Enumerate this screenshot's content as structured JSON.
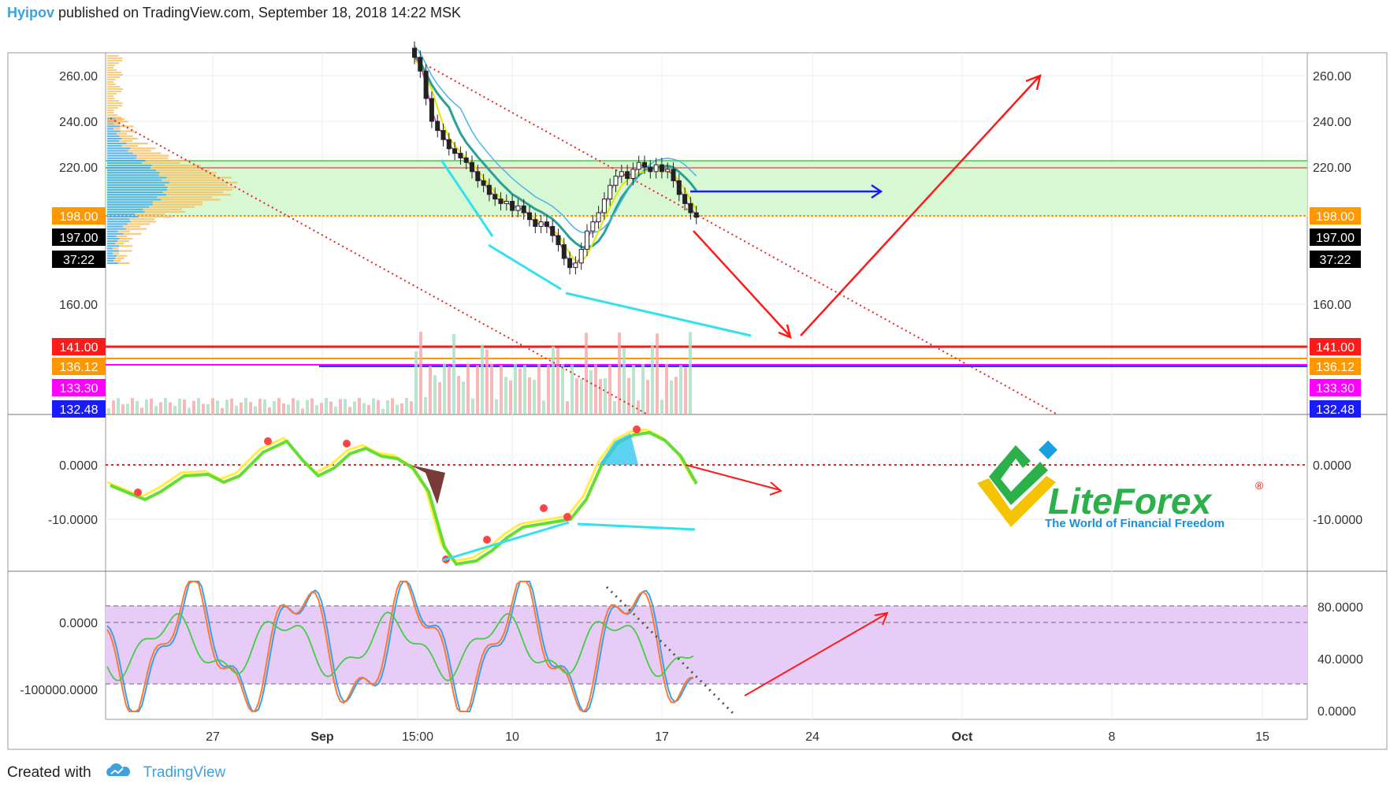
{
  "header": {
    "author": "Hyipov",
    "rest": "published on TradingView.com, September 18, 2018 14:22 MSK"
  },
  "footer": {
    "created": "Created with",
    "brand": "TradingView"
  },
  "logo": {
    "name": "LiteForex",
    "tagline": "The World of Financial Freedom",
    "mark": "®"
  },
  "colors": {
    "support_zone": "#c8f5c4",
    "oscillator_zone": "#e6c8f8",
    "red": "#ff1a1a",
    "orange": "#ff9800",
    "magenta": "#ff00ff",
    "blue": "#1a1aff",
    "cyan": "#33e0f0"
  },
  "chart_data": [
    {
      "type": "candlestick",
      "panel": "price",
      "y_ticks": [
        "260.00",
        "240.00",
        "220.00",
        "160.00"
      ],
      "y_values": [
        260,
        240,
        220,
        160
      ],
      "price_labels": [
        {
          "text": "198.00",
          "value": 198.0,
          "color": "#ff9800"
        },
        {
          "text": "197.00",
          "value": 197.0,
          "color": "#000000"
        },
        {
          "text": "37:22",
          "value": 187.5,
          "color": "#000000"
        },
        {
          "text": "141.00",
          "value": 141.0,
          "color": "#ff1a1a"
        },
        {
          "text": "136.12",
          "value": 136.12,
          "color": "#ff9800"
        },
        {
          "text": "133.30",
          "value": 133.3,
          "color": "#ff00ff"
        },
        {
          "text": "132.48",
          "value": 132.48,
          "color": "#1a1aff"
        }
      ],
      "support_zone": [
        199,
        222
      ],
      "horizontal_lines": [
        222.0,
        219.0,
        198.0,
        141.0,
        136.12,
        133.3
      ],
      "close_series": [
        268,
        262,
        250,
        240,
        236,
        232,
        228,
        226,
        224,
        222,
        218,
        214,
        212,
        208,
        206,
        204,
        205,
        201,
        203,
        200,
        197,
        194,
        196,
        194,
        190,
        186,
        180,
        176,
        178,
        184,
        192,
        196,
        200,
        206,
        212,
        216,
        218,
        215,
        219,
        222,
        220,
        218,
        221,
        218,
        219,
        214,
        208,
        204,
        200,
        198
      ]
    },
    {
      "type": "line",
      "panel": "momentum",
      "y_ticks": [
        "0.0000",
        "-10.0000"
      ],
      "y_values": [
        0,
        -10
      ],
      "zero_line": 0
    },
    {
      "type": "line",
      "panel": "stochastic",
      "y_ticks_left": [
        "0.0000",
        "-100000.0000"
      ],
      "y_ticks_right": [
        "80.0000",
        "40.0000",
        "0.0000"
      ],
      "y_values_right": [
        80,
        40,
        0
      ],
      "zone": [
        20,
        80
      ]
    },
    {
      "type": "axis",
      "x_ticks": [
        "27",
        "Sep",
        "15:00",
        "10",
        "17",
        "24",
        "Oct",
        "8",
        "15"
      ]
    }
  ]
}
